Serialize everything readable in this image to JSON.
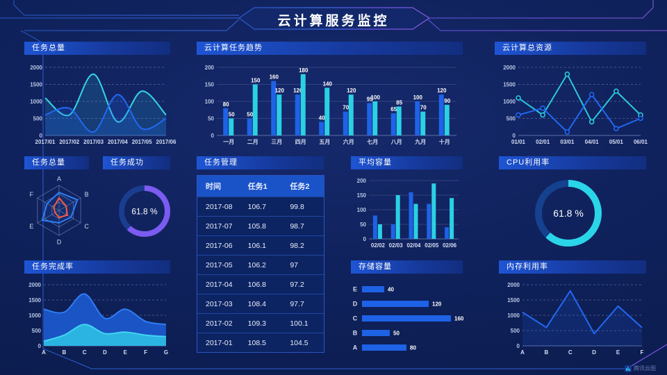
{
  "header": {
    "title": "云计算服务监控"
  },
  "watermark": {
    "label": "腾讯云图"
  },
  "colors": {
    "blue": "#1E62E6",
    "cyan": "#2BD0E4",
    "purple": "#7B5BF0",
    "orange": "#FF5A3C",
    "frame": "#2E5ED2"
  },
  "chart_data": [
    {
      "id": "task-total-trend",
      "title": "任务总量",
      "type": "area",
      "smooth": true,
      "x": [
        "2017/01",
        "2017/02",
        "2017/03",
        "2017/04",
        "2017/05",
        "2017/06"
      ],
      "series": [
        {
          "name": "cyan-series",
          "color": "#35D6E9",
          "fill": "rgba(42,190,230,0.16)",
          "values": [
            1100,
            600,
            1800,
            400,
            1300,
            600
          ]
        },
        {
          "name": "blue-series",
          "color": "#2268F2",
          "fill": "rgba(34,104,242,0.22)",
          "values": [
            600,
            800,
            100,
            1200,
            200,
            500
          ]
        }
      ],
      "ylim": [
        0,
        2000
      ],
      "yticks": [
        0,
        500,
        1000,
        1500,
        2000
      ],
      "grid": "dashed",
      "legend": "none"
    },
    {
      "id": "cloud-task-trend",
      "title": "云计算任务趋势",
      "type": "bar",
      "categories": [
        "一月",
        "二月",
        "三月",
        "四月",
        "五月",
        "六月",
        "七月",
        "八月",
        "九月",
        "十月"
      ],
      "series": [
        {
          "name": "blue-series",
          "color": "#1E62E6",
          "values": [
            80,
            50,
            160,
            120,
            40,
            70,
            95,
            65,
            100,
            120
          ]
        },
        {
          "name": "cyan-series",
          "color": "#2BD0E4",
          "values": [
            50,
            150,
            120,
            180,
            140,
            120,
            100,
            85,
            70,
            90
          ]
        }
      ],
      "ylim": [
        0,
        200
      ],
      "yticks": [
        0,
        50,
        100,
        150,
        200
      ],
      "data_labels": true,
      "grid": "solid-faint",
      "legend": "none"
    },
    {
      "id": "cloud-total-resources",
      "title": "云计算总资源",
      "type": "line",
      "markers": true,
      "x": [
        "01/01",
        "02/01",
        "03/01",
        "04/01",
        "05/01",
        "06/01"
      ],
      "series": [
        {
          "name": "cyan-series",
          "color": "#2BC8DD",
          "values": [
            1100,
            600,
            1800,
            400,
            1300,
            600
          ]
        },
        {
          "name": "blue-series",
          "color": "#2268F2",
          "values": [
            600,
            800,
            100,
            1200,
            200,
            500
          ]
        }
      ],
      "ylim": [
        0,
        2000
      ],
      "yticks": [
        0,
        500,
        1000,
        1500,
        2000
      ],
      "grid": "dashed",
      "legend": "none"
    },
    {
      "id": "task-total-radar",
      "title": "任务总量",
      "type": "radar",
      "indicators": [
        "A",
        "B",
        "C",
        "D",
        "E",
        "F"
      ],
      "max": 100,
      "series": [
        {
          "name": "blue-series",
          "color": "#2F7DF5",
          "fill": "rgba(47,125,245,0.12)",
          "values": [
            72,
            85,
            55,
            50,
            78,
            55
          ]
        },
        {
          "name": "orange-series",
          "color": "#FF5A3C",
          "fill": "none",
          "values": [
            50,
            33,
            38,
            28,
            18,
            25
          ]
        }
      ]
    },
    {
      "id": "task-success-gauge",
      "title": "任务成功",
      "type": "donut",
      "value": 61.8,
      "label": "61.8 %",
      "color": "#7B5BF0",
      "track_color": "#1B3D8F"
    },
    {
      "id": "task-management-table",
      "title": "任务管理",
      "type": "table",
      "columns": [
        "时间",
        "任务1",
        "任务2"
      ],
      "rows": [
        [
          "2017-08",
          "106.7",
          "99.8"
        ],
        [
          "2017-07",
          "105.8",
          "98.7"
        ],
        [
          "2017-06",
          "106.1",
          "98.2"
        ],
        [
          "2017-05",
          "106.2",
          "97"
        ],
        [
          "2017-04",
          "106.8",
          "97.2"
        ],
        [
          "2017-03",
          "108.4",
          "97.7"
        ],
        [
          "2017-02",
          "109.3",
          "100.1"
        ],
        [
          "2017-01",
          "108.5",
          "104.5"
        ]
      ]
    },
    {
      "id": "avg-capacity",
      "title": "平均容量",
      "type": "bar",
      "categories": [
        "02/02",
        "02/03",
        "02/04",
        "02/05",
        "02/06"
      ],
      "series": [
        {
          "name": "blue-series",
          "color": "#1E62E6",
          "values": [
            80,
            50,
            160,
            120,
            40
          ]
        },
        {
          "name": "cyan-series",
          "color": "#2BD0E4",
          "values": [
            50,
            150,
            120,
            190,
            140
          ]
        }
      ],
      "ylim": [
        0,
        200
      ],
      "yticks": [
        0,
        50,
        100,
        150,
        200
      ],
      "data_labels": false,
      "grid": "solid-faint",
      "legend": "none"
    },
    {
      "id": "cpu-usage-gauge",
      "title": "CPU利用率",
      "type": "donut",
      "value": 61.8,
      "label": "61.8 %",
      "color": "#2BD5E8",
      "track_color": "#15418F"
    },
    {
      "id": "task-completion",
      "title": "任务完成率",
      "type": "area",
      "smooth": true,
      "x": [
        "A",
        "B",
        "C",
        "D",
        "E",
        "F",
        "G"
      ],
      "series": [
        {
          "name": "blue-series",
          "color": "#2F7DF5",
          "fill": "#1B54C4",
          "values": [
            1200,
            1100,
            1700,
            900,
            1200,
            800,
            700
          ]
        },
        {
          "name": "cyan-series",
          "color": "#3FD6F0",
          "fill": "#2BB3E2",
          "values": [
            150,
            350,
            700,
            400,
            450,
            350,
            300
          ]
        }
      ],
      "ylim": [
        0,
        2000
      ],
      "yticks": [
        0,
        500,
        1000,
        1500,
        2000
      ],
      "grid": "dashed",
      "legend": "none"
    },
    {
      "id": "storage-capacity",
      "title": "存储容量",
      "type": "hbar",
      "categories": [
        "E",
        "D",
        "C",
        "B",
        "A"
      ],
      "values": [
        40,
        120,
        160,
        50,
        80
      ],
      "xmax": 170,
      "color": "#1E62E6",
      "data_labels": true
    },
    {
      "id": "memory-usage",
      "title": "内存利用率",
      "type": "line",
      "markers": false,
      "x": [
        "A",
        "B",
        "C",
        "D",
        "E",
        "F"
      ],
      "series": [
        {
          "name": "blue-series",
          "color": "#2268F2",
          "fill": "rgba(34,104,242,0.15)",
          "values": [
            1100,
            600,
            1800,
            400,
            1300,
            600
          ]
        }
      ],
      "ylim": [
        0,
        2000
      ],
      "yticks": [
        0,
        500,
        1000,
        1500,
        2000
      ],
      "grid": "dashed",
      "legend": "none"
    }
  ]
}
